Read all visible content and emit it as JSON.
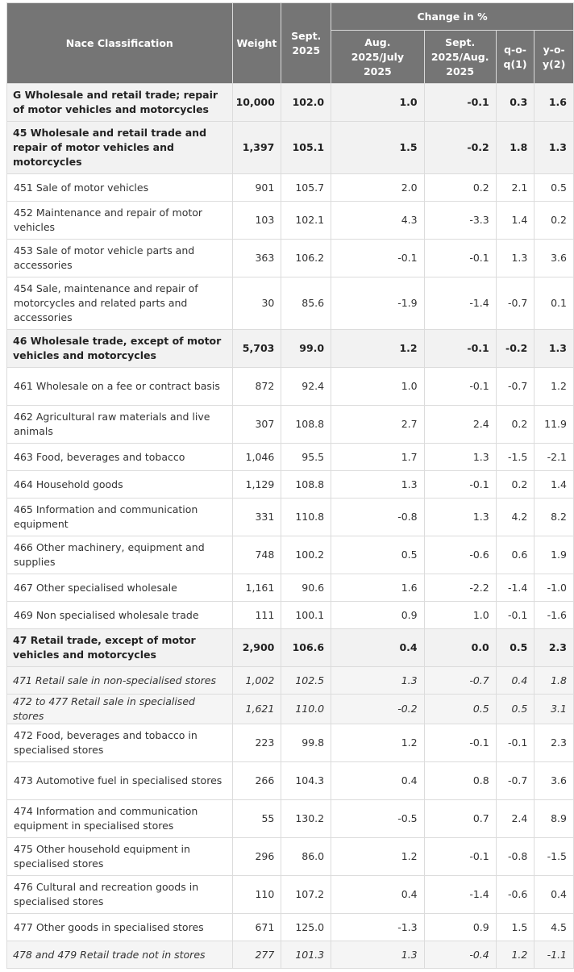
{
  "header": {
    "nace": "Nace Classification",
    "weight": "Weight",
    "sept_line1": "Sept.",
    "sept_line2": "2025",
    "change_group": "Change in %",
    "c1_l1": "Aug.",
    "c1_l2": "2025/July",
    "c1_l3": "2025",
    "c2_l1": "Sept.",
    "c2_l2": "2025/Aug.",
    "c2_l3": "2025",
    "c3_l1": "q-o-",
    "c3_l2": "q(1)",
    "c4_l1": "y-o-",
    "c4_l2": "y(2)"
  },
  "rows": [
    {
      "label": "G Wholesale and retail trade; repair of motor vehicles and motorcycles",
      "weight": "10,000",
      "sept": "102.0",
      "aug_july": "1.0",
      "sept_aug": "-0.1",
      "qoq": "0.3",
      "yoy": "1.6"
    },
    {
      "label": "45 Wholesale and retail trade and repair of motor vehicles and motorcycles",
      "weight": "1,397",
      "sept": "105.1",
      "aug_july": "1.5",
      "sept_aug": "-0.2",
      "qoq": "1.8",
      "yoy": "1.3"
    },
    {
      "label": "451 Sale of motor vehicles",
      "weight": "901",
      "sept": "105.7",
      "aug_july": "2.0",
      "sept_aug": "0.2",
      "qoq": "2.1",
      "yoy": "0.5"
    },
    {
      "label": "452 Maintenance and repair of motor vehicles",
      "weight": "103",
      "sept": "102.1",
      "aug_july": "4.3",
      "sept_aug": "-3.3",
      "qoq": "1.4",
      "yoy": "0.2"
    },
    {
      "label": "453 Sale of motor vehicle parts and accessories",
      "weight": "363",
      "sept": "106.2",
      "aug_july": "-0.1",
      "sept_aug": "-0.1",
      "qoq": "1.3",
      "yoy": "3.6"
    },
    {
      "label": "454 Sale, maintenance and repair of motorcycles and related parts and accessories",
      "weight": "30",
      "sept": "85.6",
      "aug_july": "-1.9",
      "sept_aug": "-1.4",
      "qoq": "-0.7",
      "yoy": "0.1"
    },
    {
      "label": "46 Wholesale trade, except of motor vehicles and motorcycles",
      "weight": "5,703",
      "sept": "99.0",
      "aug_july": "1.2",
      "sept_aug": "-0.1",
      "qoq": "-0.2",
      "yoy": "1.3"
    },
    {
      "label": "461 Wholesale on a fee or contract basis",
      "weight": "872",
      "sept": "92.4",
      "aug_july": "1.0",
      "sept_aug": "-0.1",
      "qoq": "-0.7",
      "yoy": "1.2"
    },
    {
      "label": "462 Agricultural raw materials and live animals",
      "weight": "307",
      "sept": "108.8",
      "aug_july": "2.7",
      "sept_aug": "2.4",
      "qoq": "0.2",
      "yoy": "11.9"
    },
    {
      "label": "463 Food, beverages and tobacco",
      "weight": "1,046",
      "sept": "95.5",
      "aug_july": "1.7",
      "sept_aug": "1.3",
      "qoq": "-1.5",
      "yoy": "-2.1"
    },
    {
      "label": "464 Household goods",
      "weight": "1,129",
      "sept": "108.8",
      "aug_july": "1.3",
      "sept_aug": "-0.1",
      "qoq": "0.2",
      "yoy": "1.4"
    },
    {
      "label": "465 Information and communication equipment",
      "weight": "331",
      "sept": "110.8",
      "aug_july": "-0.8",
      "sept_aug": "1.3",
      "qoq": "4.2",
      "yoy": "8.2"
    },
    {
      "label": "466 Other machinery, equipment and supplies",
      "weight": "748",
      "sept": "100.2",
      "aug_july": "0.5",
      "sept_aug": "-0.6",
      "qoq": "0.6",
      "yoy": "1.9"
    },
    {
      "label": "467 Other specialised wholesale",
      "weight": "1,161",
      "sept": "90.6",
      "aug_july": "1.6",
      "sept_aug": "-2.2",
      "qoq": "-1.4",
      "yoy": "-1.0"
    },
    {
      "label": "469 Non specialised wholesale trade",
      "weight": "111",
      "sept": "100.1",
      "aug_july": "0.9",
      "sept_aug": "1.0",
      "qoq": "-0.1",
      "yoy": "-1.6"
    },
    {
      "label": "47 Retail trade, except of motor vehicles and motorcycles",
      "weight": "2,900",
      "sept": "106.6",
      "aug_july": "0.4",
      "sept_aug": "0.0",
      "qoq": "0.5",
      "yoy": "2.3"
    },
    {
      "label": "471 Retail sale in non-specialised stores",
      "weight": "1,002",
      "sept": "102.5",
      "aug_july": "1.3",
      "sept_aug": "-0.7",
      "qoq": "0.4",
      "yoy": "1.8"
    },
    {
      "label": "472 to 477 Retail sale in specialised stores",
      "weight": "1,621",
      "sept": "110.0",
      "aug_july": "-0.2",
      "sept_aug": "0.5",
      "qoq": "0.5",
      "yoy": "3.1"
    },
    {
      "label": "472 Food, beverages and tobacco in specialised stores",
      "weight": "223",
      "sept": "99.8",
      "aug_july": "1.2",
      "sept_aug": "-0.1",
      "qoq": "-0.1",
      "yoy": "2.3"
    },
    {
      "label": "473 Automotive fuel in specialised stores",
      "weight": "266",
      "sept": "104.3",
      "aug_july": "0.4",
      "sept_aug": "0.8",
      "qoq": "-0.7",
      "yoy": "3.6"
    },
    {
      "label": "474 Information and communication equipment in specialised stores",
      "weight": "55",
      "sept": "130.2",
      "aug_july": "-0.5",
      "sept_aug": "0.7",
      "qoq": "2.4",
      "yoy": "8.9"
    },
    {
      "label": "475 Other household equipment in specialised stores",
      "weight": "296",
      "sept": "86.0",
      "aug_july": "1.2",
      "sept_aug": "-0.1",
      "qoq": "-0.8",
      "yoy": "-1.5"
    },
    {
      "label": "476 Cultural and recreation goods in specialised stores",
      "weight": "110",
      "sept": "107.2",
      "aug_july": "0.4",
      "sept_aug": "-1.4",
      "qoq": "-0.6",
      "yoy": "0.4"
    },
    {
      "label": "477 Other goods in specialised stores",
      "weight": "671",
      "sept": "125.0",
      "aug_july": "-1.3",
      "sept_aug": "0.9",
      "qoq": "1.5",
      "yoy": "4.5"
    },
    {
      "label": "478 and 479 Retail trade not in stores",
      "weight": "277",
      "sept": "101.3",
      "aug_july": "1.3",
      "sept_aug": "-0.4",
      "qoq": "1.2",
      "yoy": "-1.1"
    }
  ]
}
